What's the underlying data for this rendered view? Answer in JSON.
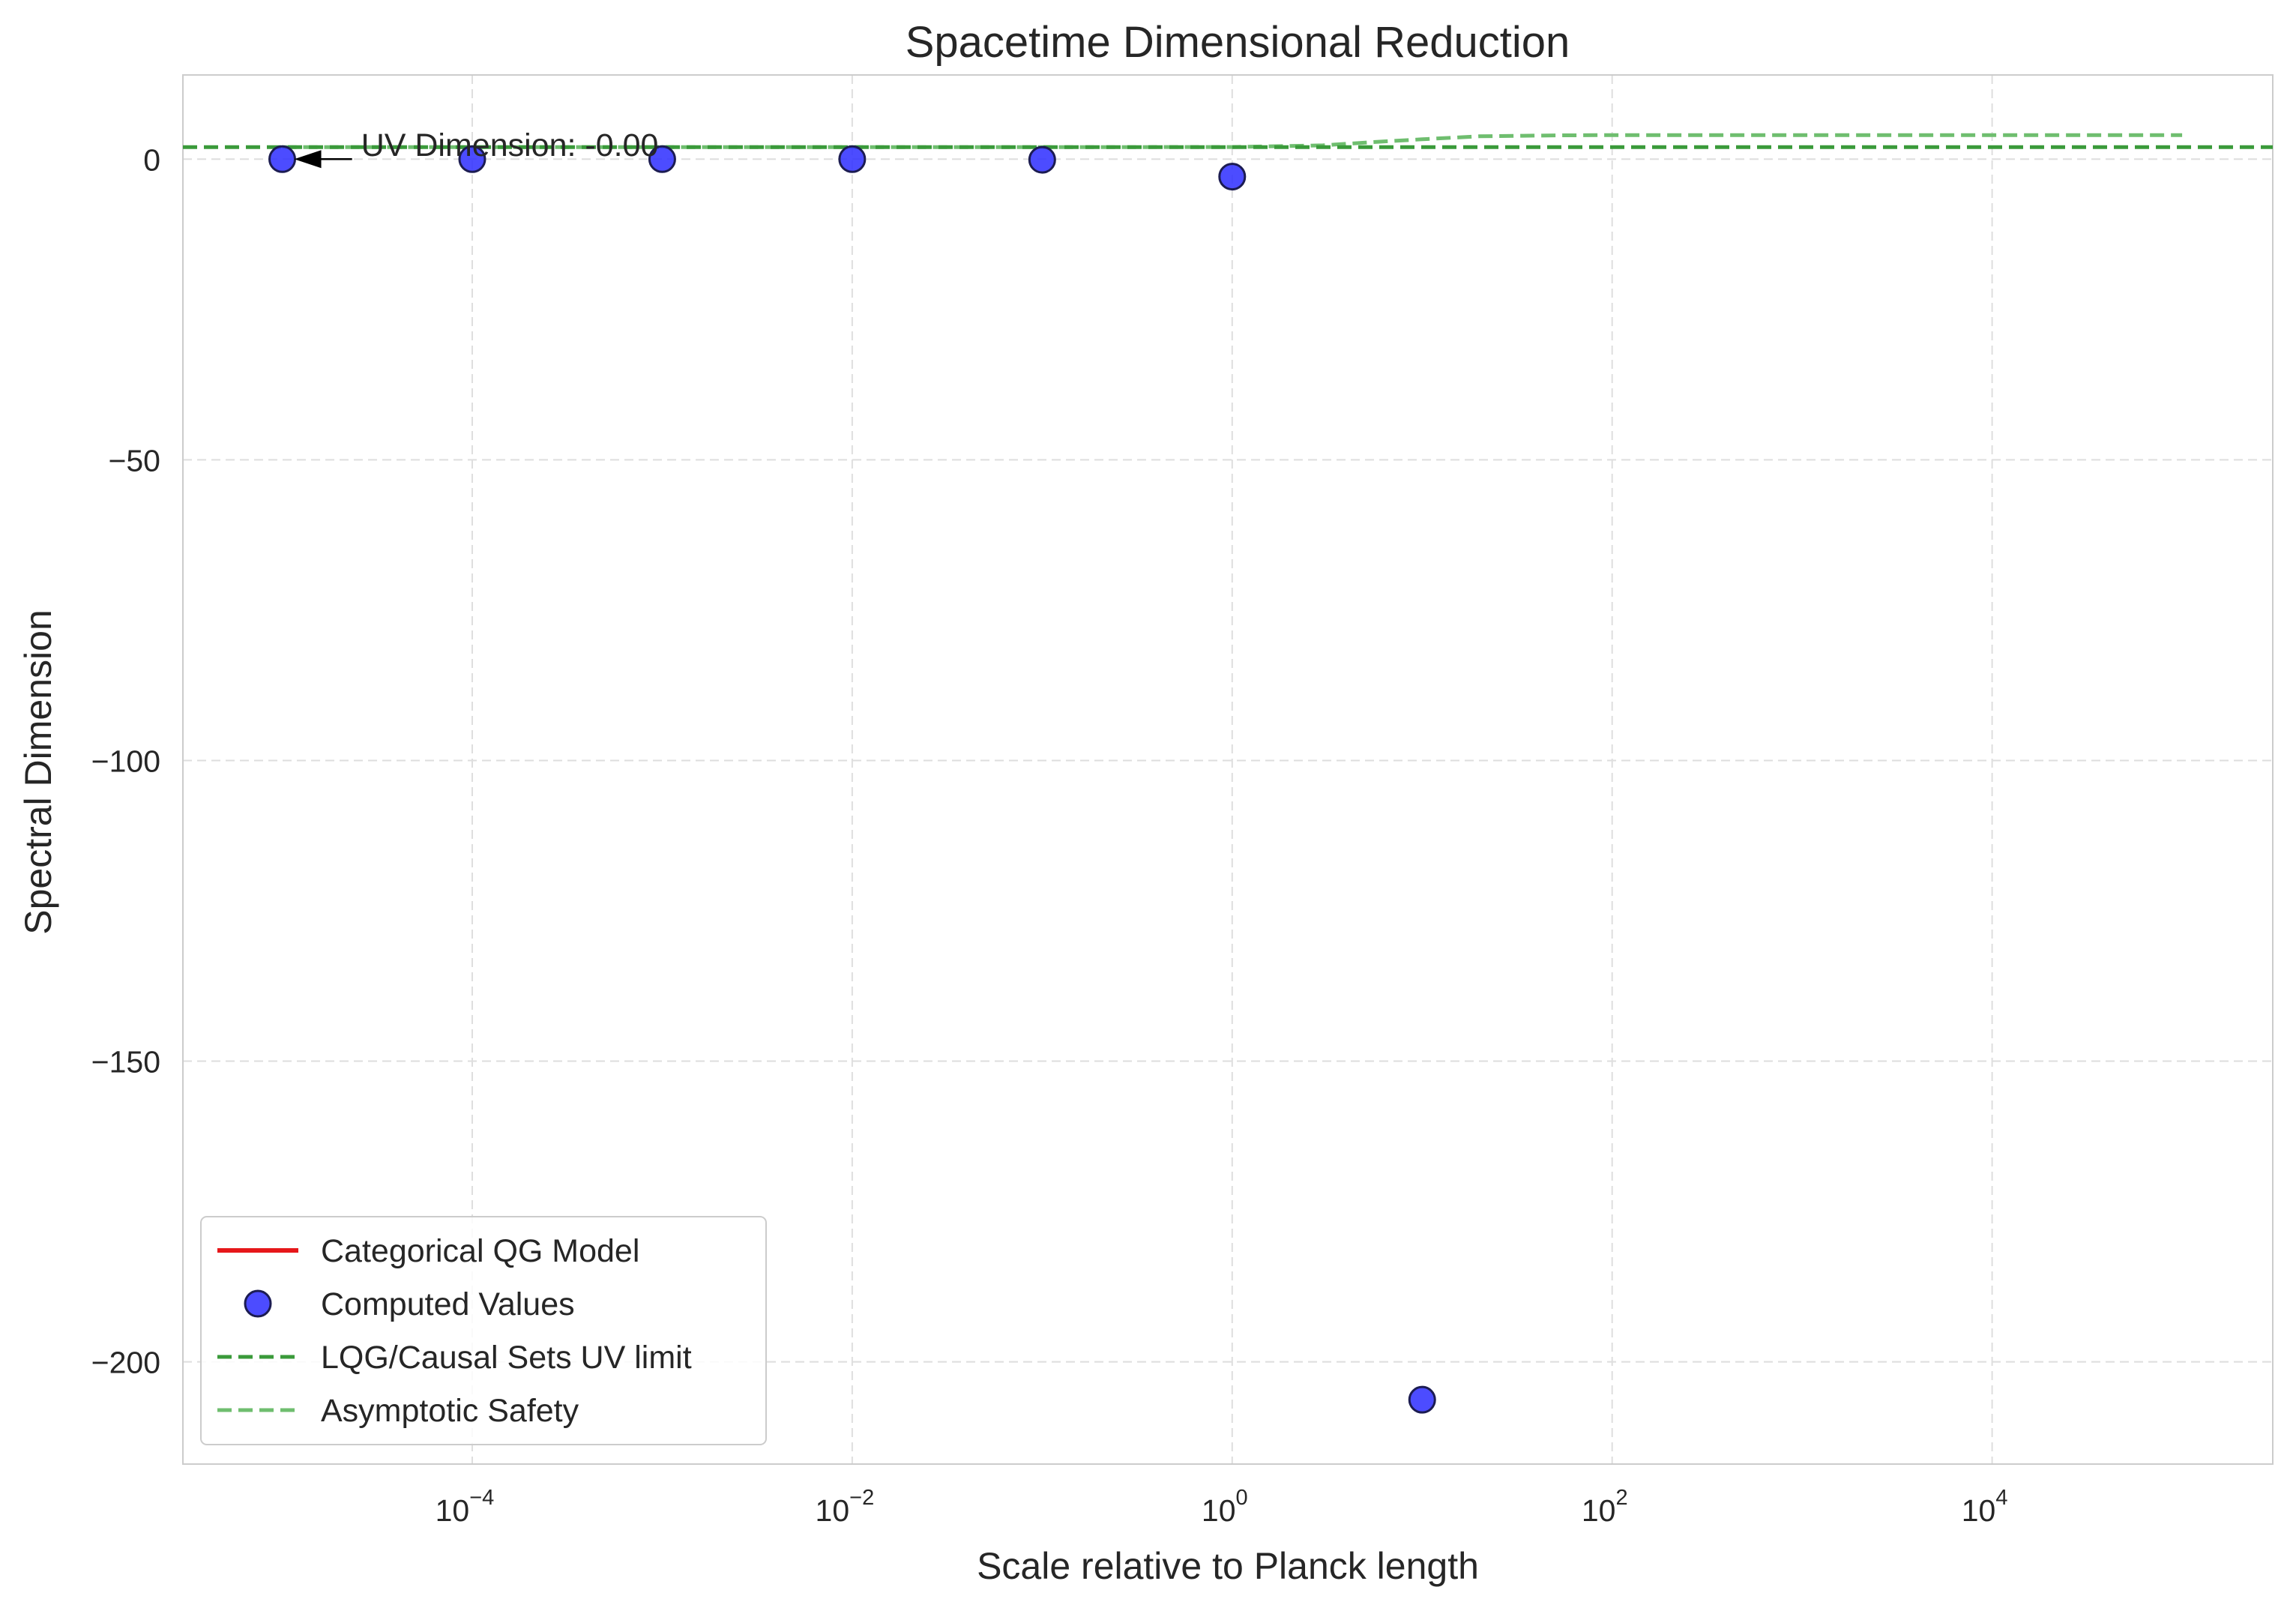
{
  "chart_data": {
    "type": "scatter",
    "title": "Spacetime Dimensional Reduction",
    "xlabel": "Scale relative to Planck length",
    "ylabel": "Spectral Dimension",
    "xscale": "log",
    "xlim": [
      3e-06,
      300000.0
    ],
    "ylim": [
      -217,
      14
    ],
    "grid": true,
    "x_ticks": [
      {
        "value": 0.0001,
        "base": "10",
        "exp": "−4"
      },
      {
        "value": 0.01,
        "base": "10",
        "exp": "−2"
      },
      {
        "value": 1,
        "base": "10",
        "exp": "0"
      },
      {
        "value": 100,
        "base": "10",
        "exp": "2"
      },
      {
        "value": 10000,
        "base": "10",
        "exp": "4"
      }
    ],
    "y_ticks": [
      {
        "value": 0,
        "label": "0"
      },
      {
        "value": -50,
        "label": "−50"
      },
      {
        "value": -100,
        "label": "−100"
      },
      {
        "value": -150,
        "label": "−150"
      },
      {
        "value": -200,
        "label": "−200"
      }
    ],
    "series": [
      {
        "name": "Categorical QG Model",
        "kind": "line",
        "color": "#e6171a",
        "x": [],
        "y": []
      },
      {
        "name": "Computed Values",
        "kind": "scatter",
        "color": "#3333ff",
        "x": [
          1e-05,
          0.0001,
          0.001,
          0.01,
          0.1,
          1,
          10
        ],
        "y": [
          0,
          0,
          0,
          0,
          -0.1,
          -2.9,
          -206.3
        ]
      },
      {
        "name": "LQG/Causal Sets UV limit",
        "kind": "hline",
        "color": "#3a9a3a",
        "y": 2
      },
      {
        "name": "Asymptotic Safety",
        "kind": "dashed-line",
        "color": "#6fbe6f",
        "x": [
          1e-05,
          0.0001,
          0.001,
          0.01,
          0.1,
          1,
          3,
          6,
          10,
          20,
          50,
          100,
          1000,
          10000,
          100000
        ],
        "y": [
          2,
          2,
          2,
          2,
          2,
          2.02,
          2.3,
          2.9,
          3.3,
          3.8,
          3.95,
          4,
          4,
          4,
          4
        ]
      }
    ],
    "annotations": [
      {
        "text": "UV Dimension: -0.00",
        "x": 1e-05,
        "y": 0,
        "text_x": 2.6e-05,
        "text_y": 2.3,
        "arrow": true
      }
    ],
    "legend_location": "lower-left"
  }
}
